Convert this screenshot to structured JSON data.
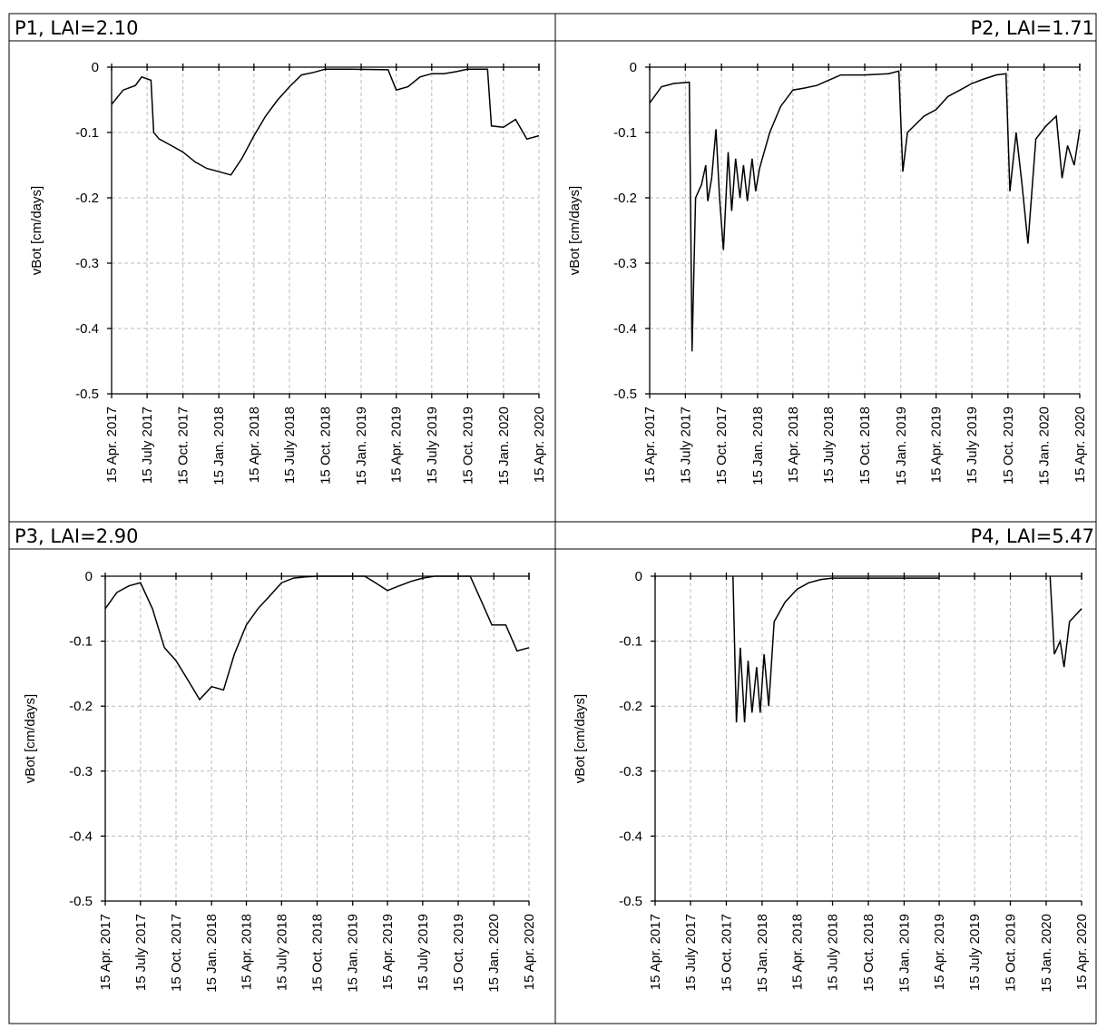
{
  "chart_data": [
    {
      "type": "line",
      "title": "P1, LAI=2.10",
      "ylabel": "vBot [cm/days]",
      "color": "#000000",
      "grid": true,
      "xlim": [
        "2017-04-15",
        "2020-04-15"
      ],
      "ylim": [
        -0.5,
        0
      ],
      "yticks": [
        0,
        -0.1,
        -0.2,
        -0.3,
        -0.4,
        -0.5
      ],
      "xticks": [
        {
          "value": "2017-04-15",
          "label": "15 Apr. 2017"
        },
        {
          "value": "2017-07-15",
          "label": "15 July 2017"
        },
        {
          "value": "2017-10-15",
          "label": "15 Oct. 2017"
        },
        {
          "value": "2018-01-15",
          "label": "15 Jan. 2018"
        },
        {
          "value": "2018-04-15",
          "label": "15 Apr. 2018"
        },
        {
          "value": "2018-07-15",
          "label": "15 July 2018"
        },
        {
          "value": "2018-10-15",
          "label": "15 Oct. 2018"
        },
        {
          "value": "2019-01-15",
          "label": "15 Jan. 2019"
        },
        {
          "value": "2019-04-15",
          "label": "15 Apr. 2019"
        },
        {
          "value": "2019-07-15",
          "label": "15 July 2019"
        },
        {
          "value": "2019-10-15",
          "label": "15 Oct. 2019"
        },
        {
          "value": "2020-01-15",
          "label": "15 Jan. 2020"
        },
        {
          "value": "2020-04-15",
          "label": "15 Apr. 2020"
        }
      ],
      "x": [
        "2017-04-15",
        "2017-05-15",
        "2017-06-15",
        "2017-07-01",
        "2017-07-25",
        "2017-08-01",
        "2017-08-15",
        "2017-09-15",
        "2017-10-15",
        "2017-11-15",
        "2017-12-15",
        "2018-01-15",
        "2018-02-15",
        "2018-03-15",
        "2018-04-15",
        "2018-05-15",
        "2018-06-15",
        "2018-07-15",
        "2018-08-15",
        "2018-09-15",
        "2018-10-15",
        "2018-12-15",
        "2019-03-25",
        "2019-04-15",
        "2019-05-15",
        "2019-06-15",
        "2019-07-15",
        "2019-08-15",
        "2019-09-15",
        "2019-10-15",
        "2019-12-05",
        "2019-12-15",
        "2020-01-15",
        "2020-02-15",
        "2020-03-15",
        "2020-04-15"
      ],
      "values": [
        -0.057,
        -0.035,
        -0.028,
        -0.015,
        -0.02,
        -0.1,
        -0.11,
        -0.12,
        -0.13,
        -0.145,
        -0.155,
        -0.16,
        -0.165,
        -0.14,
        -0.105,
        -0.075,
        -0.05,
        -0.03,
        -0.012,
        -0.008,
        -0.003,
        -0.003,
        -0.004,
        -0.035,
        -0.03,
        -0.015,
        -0.01,
        -0.01,
        -0.007,
        -0.003,
        -0.003,
        -0.09,
        -0.092,
        -0.08,
        -0.11,
        -0.105
      ]
    },
    {
      "type": "line",
      "title": "P2, LAI=1.71",
      "ylabel": "vBot [cm/days]",
      "color": "#000000",
      "grid": true,
      "xlim": [
        "2017-04-15",
        "2020-04-15"
      ],
      "ylim": [
        -0.5,
        0
      ],
      "yticks": [
        0,
        -0.1,
        -0.2,
        -0.3,
        -0.4,
        -0.5
      ],
      "xticks": [
        {
          "value": "2017-04-15",
          "label": "15 Apr. 2017"
        },
        {
          "value": "2017-07-15",
          "label": "15 July 2017"
        },
        {
          "value": "2017-10-15",
          "label": "15 Oct. 2017"
        },
        {
          "value": "2018-01-15",
          "label": "15 Jan. 2018"
        },
        {
          "value": "2018-04-15",
          "label": "15 Apr. 2018"
        },
        {
          "value": "2018-07-15",
          "label": "15 July 2018"
        },
        {
          "value": "2018-10-15",
          "label": "15 Oct. 2018"
        },
        {
          "value": "2019-01-15",
          "label": "15 Jan. 2019"
        },
        {
          "value": "2019-04-15",
          "label": "15 Apr. 2019"
        },
        {
          "value": "2019-07-15",
          "label": "15 July 2019"
        },
        {
          "value": "2019-10-15",
          "label": "15 Oct. 2019"
        },
        {
          "value": "2020-01-15",
          "label": "15 Jan. 2020"
        },
        {
          "value": "2020-04-15",
          "label": "15 Apr. 2020"
        }
      ],
      "x": [
        "2017-04-15",
        "2017-05-15",
        "2017-06-15",
        "2017-07-25",
        "2017-08-01",
        "2017-08-10",
        "2017-08-25",
        "2017-09-05",
        "2017-09-10",
        "2017-09-20",
        "2017-10-01",
        "2017-10-10",
        "2017-10-20",
        "2017-11-01",
        "2017-11-10",
        "2017-11-20",
        "2017-12-01",
        "2017-12-10",
        "2017-12-20",
        "2018-01-01",
        "2018-01-10",
        "2018-01-20",
        "2018-02-15",
        "2018-03-15",
        "2018-04-15",
        "2018-05-15",
        "2018-06-15",
        "2018-07-15",
        "2018-08-15",
        "2018-10-15",
        "2018-12-15",
        "2019-01-10",
        "2019-01-20",
        "2019-02-01",
        "2019-03-15",
        "2019-04-15",
        "2019-05-15",
        "2019-06-15",
        "2019-07-15",
        "2019-08-15",
        "2019-09-15",
        "2019-10-10",
        "2019-10-20",
        "2019-11-05",
        "2019-11-20",
        "2019-12-05",
        "2019-12-25",
        "2020-01-20",
        "2020-02-15",
        "2020-03-01",
        "2020-03-15",
        "2020-04-01",
        "2020-04-15"
      ],
      "values": [
        -0.055,
        -0.03,
        -0.025,
        -0.023,
        -0.435,
        -0.2,
        -0.18,
        -0.15,
        -0.205,
        -0.17,
        -0.095,
        -0.2,
        -0.28,
        -0.13,
        -0.22,
        -0.14,
        -0.2,
        -0.15,
        -0.205,
        -0.14,
        -0.19,
        -0.155,
        -0.1,
        -0.06,
        -0.035,
        -0.032,
        -0.028,
        -0.02,
        -0.012,
        -0.012,
        -0.01,
        -0.006,
        -0.16,
        -0.1,
        -0.075,
        -0.065,
        -0.045,
        -0.035,
        -0.025,
        -0.018,
        -0.012,
        -0.01,
        -0.19,
        -0.1,
        -0.18,
        -0.27,
        -0.11,
        -0.09,
        -0.075,
        -0.17,
        -0.12,
        -0.15,
        -0.095
      ]
    },
    {
      "type": "line",
      "title": "P3, LAI=2.90",
      "ylabel": "vBot [cm/days]",
      "color": "#000000",
      "grid": true,
      "xlim": [
        "2017-04-15",
        "2020-04-15"
      ],
      "ylim": [
        -0.5,
        0
      ],
      "yticks": [
        0,
        -0.1,
        -0.2,
        -0.3,
        -0.4,
        -0.5
      ],
      "xticks": [
        {
          "value": "2017-04-15",
          "label": "15 Apr. 2017"
        },
        {
          "value": "2017-07-15",
          "label": "15 July 2017"
        },
        {
          "value": "2017-10-15",
          "label": "15 Oct. 2017"
        },
        {
          "value": "2018-01-15",
          "label": "15 Jan. 2018"
        },
        {
          "value": "2018-04-15",
          "label": "15 Apr. 2018"
        },
        {
          "value": "2018-07-15",
          "label": "15 July 2018"
        },
        {
          "value": "2018-10-15",
          "label": "15 Oct. 2018"
        },
        {
          "value": "2019-01-15",
          "label": "15 Jan. 2019"
        },
        {
          "value": "2019-04-15",
          "label": "15 Apr. 2019"
        },
        {
          "value": "2019-07-15",
          "label": "15 July 2019"
        },
        {
          "value": "2019-10-15",
          "label": "15 Oct. 2019"
        },
        {
          "value": "2020-01-15",
          "label": "15 Jan. 2020"
        },
        {
          "value": "2020-04-15",
          "label": "15 Apr. 2020"
        }
      ],
      "x": [
        "2017-04-15",
        "2017-05-15",
        "2017-06-15",
        "2017-07-15",
        "2017-08-15",
        "2017-09-15",
        "2017-10-15",
        "2017-11-15",
        "2017-12-15",
        "2018-01-15",
        "2018-02-15",
        "2018-03-15",
        "2018-04-15",
        "2018-05-15",
        "2018-06-15",
        "2018-07-15",
        "2018-08-15",
        "2018-09-15",
        "2018-10-15",
        "2019-02-15",
        "2019-03-15",
        "2019-04-15",
        "2019-05-15",
        "2019-06-15",
        "2019-07-15",
        "2019-08-15",
        "2019-11-15",
        "2019-12-15",
        "2020-01-10",
        "2020-02-15",
        "2020-03-15",
        "2020-04-15"
      ],
      "values": [
        -0.05,
        -0.025,
        -0.015,
        -0.01,
        -0.05,
        -0.11,
        -0.13,
        -0.16,
        -0.19,
        -0.17,
        -0.175,
        -0.12,
        -0.075,
        -0.05,
        -0.03,
        -0.01,
        -0.003,
        -0.001,
        0,
        0,
        -0.01,
        -0.022,
        -0.015,
        -0.008,
        -0.003,
        0,
        0,
        -0.04,
        -0.075,
        -0.075,
        -0.115,
        -0.11
      ]
    },
    {
      "type": "line",
      "title": "P4, LAI=5.47",
      "ylabel": "vBot [cm/days]",
      "color": "#000000",
      "grid": true,
      "xlim": [
        "2017-04-15",
        "2020-04-15"
      ],
      "ylim": [
        -0.5,
        0
      ],
      "yticks": [
        0,
        -0.1,
        -0.2,
        -0.3,
        -0.4,
        -0.5
      ],
      "xticks": [
        {
          "value": "2017-04-15",
          "label": "15 Apr. 2017"
        },
        {
          "value": "2017-07-15",
          "label": "15 July 2017"
        },
        {
          "value": "2017-10-15",
          "label": "15 Oct. 2017"
        },
        {
          "value": "2018-01-15",
          "label": "15 Jan. 2018"
        },
        {
          "value": "2018-04-15",
          "label": "15 Apr. 2018"
        },
        {
          "value": "2018-07-15",
          "label": "15 July 2018"
        },
        {
          "value": "2018-10-15",
          "label": "15 Oct. 2018"
        },
        {
          "value": "2019-01-15",
          "label": "15 Jan. 2019"
        },
        {
          "value": "2019-04-15",
          "label": "15 Apr. 2019"
        },
        {
          "value": "2019-07-15",
          "label": "15 July 2019"
        },
        {
          "value": "2019-10-15",
          "label": "15 Oct. 2019"
        },
        {
          "value": "2020-01-15",
          "label": "15 Jan. 2020"
        },
        {
          "value": "2020-04-15",
          "label": "15 Apr. 2020"
        }
      ],
      "x": [
        "2017-11-01",
        "2017-11-10",
        "2017-11-20",
        "2017-12-01",
        "2017-12-10",
        "2017-12-20",
        "2018-01-01",
        "2018-01-10",
        "2018-01-20",
        "2018-02-01",
        "2018-02-15",
        "2018-03-15",
        "2018-04-15",
        "2018-05-15",
        "2018-06-15",
        "2018-07-15",
        "2019-04-15",
        "2019-07-15",
        "2020-01-25",
        "2020-02-05",
        "2020-02-20",
        "2020-03-01",
        "2020-03-15",
        "2020-04-15"
      ],
      "values": [
        0,
        -0.225,
        -0.11,
        -0.225,
        -0.13,
        -0.21,
        -0.14,
        -0.21,
        -0.12,
        -0.2,
        -0.07,
        -0.04,
        -0.02,
        -0.01,
        -0.005,
        -0.003,
        -0.003,
        null,
        0,
        -0.12,
        -0.1,
        -0.14,
        -0.07,
        -0.05
      ]
    }
  ]
}
